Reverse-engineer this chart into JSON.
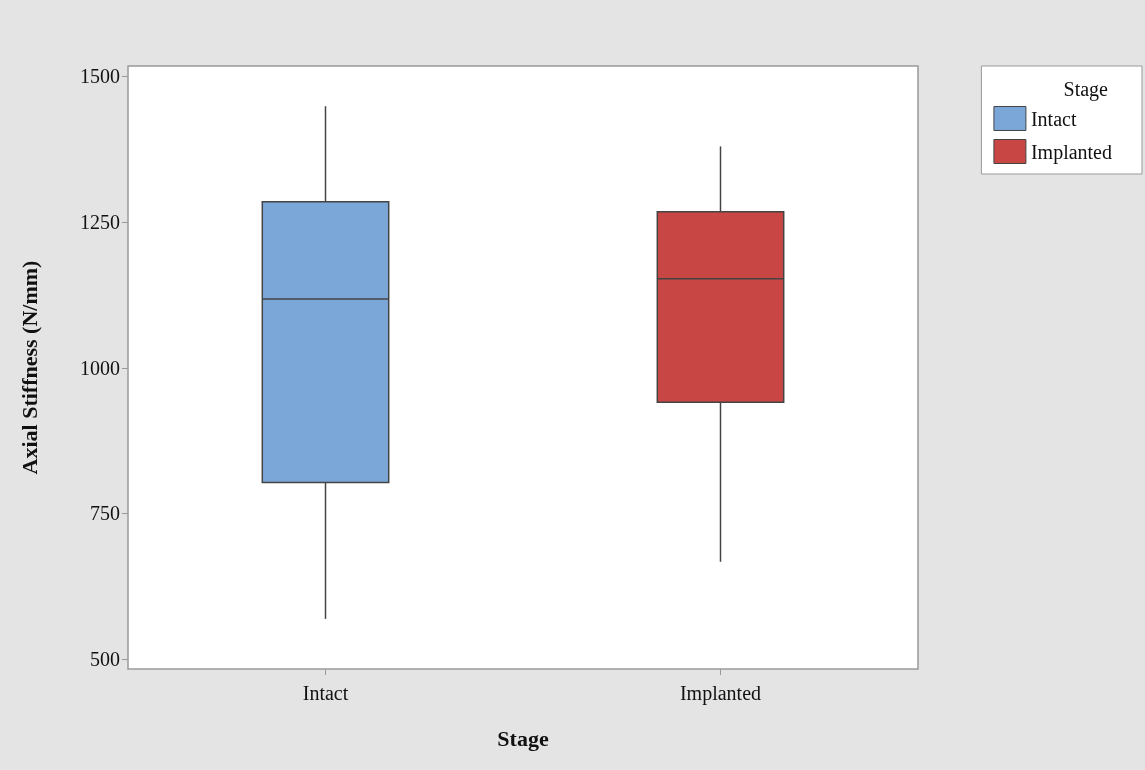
{
  "chart_data": {
    "type": "box",
    "xlabel": "Stage",
    "ylabel": "Axial Stiffness (N/mm)",
    "legend_title": "Stage",
    "legend": "top right",
    "categories": [
      "Intact",
      "Implanted"
    ],
    "ylim": [
      483,
      1518
    ],
    "yticks": [
      500,
      750,
      1000,
      1250,
      1500
    ],
    "series": [
      {
        "name": "Intact",
        "color": "#7ba7d8",
        "boxes": [
          {
            "low": 569,
            "q1": 803,
            "median": 1118,
            "q3": 1285,
            "high": 1449
          },
          null
        ]
      },
      {
        "name": "Implanted",
        "color": "#c84644",
        "boxes": [
          null,
          {
            "low": 667,
            "q1": 941,
            "median": 1153,
            "q3": 1268,
            "high": 1380
          }
        ]
      }
    ]
  }
}
